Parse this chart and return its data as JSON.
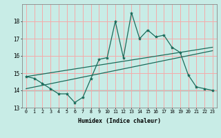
{
  "title": "",
  "xlabel": "Humidex (Indice chaleur)",
  "ylabel": "",
  "background_color": "#c8ece6",
  "line_color": "#1a6b5a",
  "grid_color": "#f5aaaa",
  "x_data": [
    0,
    1,
    2,
    3,
    4,
    5,
    6,
    7,
    8,
    9,
    10,
    11,
    12,
    13,
    14,
    15,
    16,
    17,
    18,
    19,
    20,
    21,
    22,
    23
  ],
  "y_main": [
    14.8,
    14.7,
    14.4,
    14.1,
    13.8,
    13.8,
    13.3,
    13.6,
    14.7,
    15.8,
    15.9,
    18.0,
    15.9,
    18.5,
    17.0,
    17.5,
    17.1,
    17.2,
    16.5,
    16.2,
    14.9,
    14.2,
    14.1,
    14.0
  ],
  "trend1_x": [
    0,
    23
  ],
  "trend1_y": [
    14.8,
    16.5
  ],
  "trend2_x": [
    0,
    23
  ],
  "trend2_y": [
    14.1,
    16.3
  ],
  "hline_y": 14.0,
  "ylim": [
    13.0,
    19.0
  ],
  "xlim": [
    -0.5,
    23.5
  ],
  "yticks": [
    13,
    14,
    15,
    16,
    17,
    18
  ],
  "xticks": [
    0,
    1,
    2,
    3,
    4,
    5,
    6,
    7,
    8,
    9,
    10,
    11,
    12,
    13,
    14,
    15,
    16,
    17,
    18,
    19,
    20,
    21,
    22,
    23
  ],
  "xlabel_fontsize": 6.0,
  "ytick_fontsize": 5.5,
  "xtick_fontsize": 4.8
}
